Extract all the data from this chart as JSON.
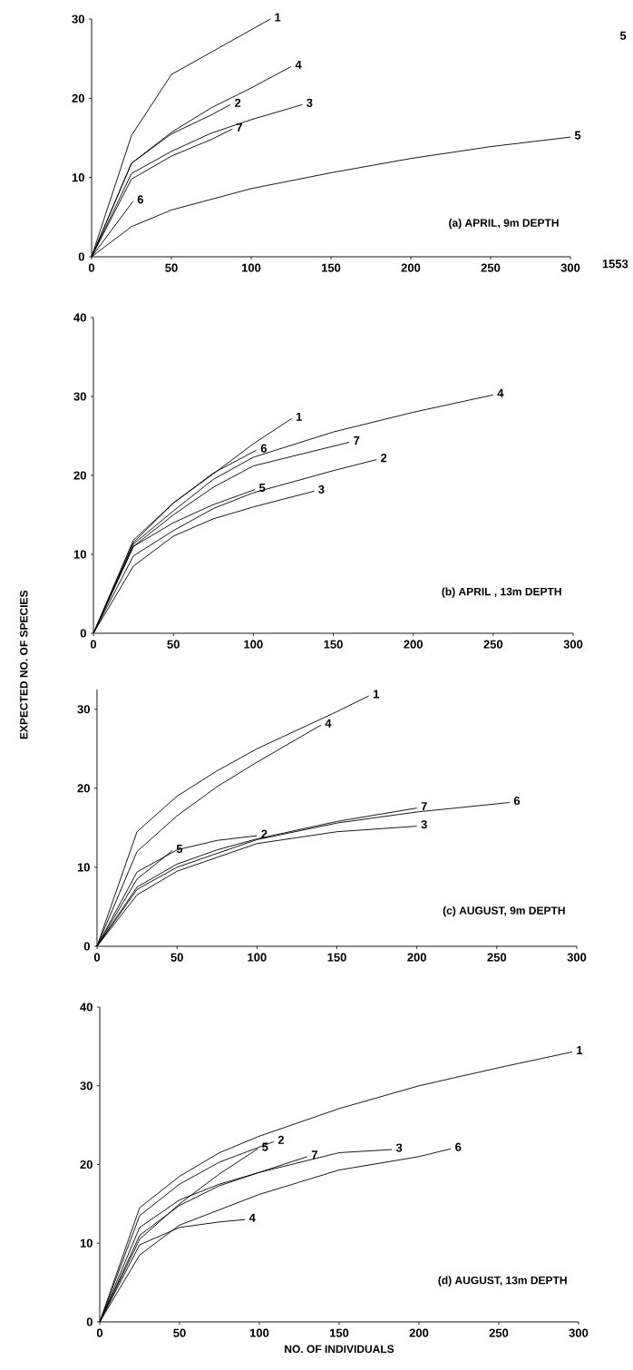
{
  "chart_data": [
    {
      "type": "line",
      "title": "(a)  APRIL, 9m DEPTH",
      "xlim": [
        0,
        300
      ],
      "ylim": [
        0,
        30
      ],
      "xticks": [
        0,
        50,
        100,
        150,
        200,
        250,
        300
      ],
      "yticks": [
        0,
        10,
        20,
        30
      ],
      "legend": false,
      "grid": false,
      "marker": "none",
      "line_style": "solid",
      "annotations": [
        "1553",
        "5"
      ],
      "series": [
        {
          "name": "1",
          "color": "#000000",
          "x": [
            0,
            25,
            50,
            112
          ],
          "values": [
            0,
            15.3,
            23,
            30
          ]
        },
        {
          "name": "2",
          "color": "#000000",
          "x": [
            0,
            25,
            50,
            75,
            87
          ],
          "values": [
            0,
            11.8,
            15.5,
            17.9,
            19.2
          ]
        },
        {
          "name": "3",
          "color": "#000000",
          "x": [
            0,
            25,
            50,
            75,
            100,
            132
          ],
          "values": [
            0,
            10.5,
            13.3,
            15.6,
            17.3,
            19.2
          ]
        },
        {
          "name": "4",
          "color": "#000000",
          "x": [
            0,
            25,
            50,
            75,
            100,
            125
          ],
          "values": [
            0,
            11.8,
            15.7,
            18.8,
            21.3,
            24
          ]
        },
        {
          "name": "5",
          "color": "#000000",
          "x": [
            0,
            25,
            50,
            100,
            150,
            200,
            250,
            300
          ],
          "values": [
            0,
            3.8,
            5.9,
            8.6,
            10.6,
            12.4,
            13.9,
            15.1
          ]
        },
        {
          "name": "6",
          "color": "#000000",
          "x": [
            0,
            26
          ],
          "values": [
            0,
            7
          ]
        },
        {
          "name": "7",
          "color": "#000000",
          "x": [
            0,
            25,
            50,
            75,
            88
          ],
          "values": [
            0,
            9.8,
            12.7,
            14.8,
            16.1
          ]
        }
      ]
    },
    {
      "type": "line",
      "title": "(b) APRIL , 13m DEPTH",
      "ylabel": "EXPECTED NO. OF SPECIES",
      "xlim": [
        0,
        300
      ],
      "ylim": [
        0,
        40
      ],
      "xticks": [
        0,
        50,
        100,
        150,
        200,
        250,
        300
      ],
      "yticks": [
        0,
        10,
        20,
        30,
        40
      ],
      "legend": false,
      "grid": false,
      "marker": "none",
      "line_style": "solid",
      "series": [
        {
          "name": "1",
          "color": "#000000",
          "x": [
            0,
            25,
            50,
            75,
            100,
            124
          ],
          "values": [
            0,
            11.8,
            16.5,
            20.2,
            24,
            27.2
          ]
        },
        {
          "name": "2",
          "color": "#000000",
          "x": [
            0,
            25,
            50,
            75,
            100,
            150,
            177
          ],
          "values": [
            0,
            9.8,
            13,
            15.8,
            17.8,
            20.6,
            22
          ]
        },
        {
          "name": "3",
          "color": "#000000",
          "x": [
            0,
            25,
            50,
            75,
            100,
            138
          ],
          "values": [
            0,
            8.5,
            12.3,
            14.5,
            16,
            18
          ]
        },
        {
          "name": "4",
          "color": "#000000",
          "x": [
            0,
            25,
            50,
            75,
            100,
            150,
            200,
            250
          ],
          "values": [
            0,
            11.3,
            15.5,
            19.5,
            22.3,
            25.5,
            28,
            30.2
          ]
        },
        {
          "name": "5",
          "color": "#000000",
          "x": [
            0,
            25,
            50,
            75,
            101
          ],
          "values": [
            0,
            11,
            14,
            16.3,
            18.2
          ]
        },
        {
          "name": "6",
          "color": "#000000",
          "x": [
            0,
            25,
            50,
            75,
            102
          ],
          "values": [
            0,
            11.5,
            16.5,
            20.3,
            23.2
          ]
        },
        {
          "name": "7",
          "color": "#000000",
          "x": [
            0,
            25,
            50,
            75,
            100,
            160
          ],
          "values": [
            0,
            11,
            15,
            18.5,
            21.2,
            24.2
          ]
        }
      ]
    },
    {
      "type": "line",
      "title": "(c) AUGUST, 9m DEPTH",
      "xlim": [
        0,
        300
      ],
      "ylim": [
        0,
        32.5
      ],
      "xticks": [
        0,
        50,
        100,
        150,
        200,
        250,
        300
      ],
      "yticks": [
        0,
        10,
        20,
        30
      ],
      "legend": false,
      "grid": false,
      "marker": "none",
      "line_style": "solid",
      "series": [
        {
          "name": "1",
          "color": "#000000",
          "x": [
            0,
            25,
            50,
            75,
            100,
            150,
            170
          ],
          "values": [
            0,
            14.5,
            19,
            22.2,
            25,
            29.7,
            31.7
          ]
        },
        {
          "name": "2",
          "color": "#000000",
          "x": [
            0,
            25,
            50,
            75,
            100
          ],
          "values": [
            0,
            9.4,
            12.2,
            13.4,
            14
          ]
        },
        {
          "name": "3",
          "color": "#000000",
          "x": [
            0,
            25,
            50,
            100,
            150,
            200
          ],
          "values": [
            0,
            6.5,
            9.5,
            13,
            14.5,
            15.2
          ]
        },
        {
          "name": "4",
          "color": "#000000",
          "x": [
            0,
            25,
            50,
            75,
            100,
            140
          ],
          "values": [
            0,
            12,
            16.5,
            20.2,
            23.3,
            28
          ]
        },
        {
          "name": "5",
          "color": "#000000",
          "x": [
            0,
            25,
            47
          ],
          "values": [
            0,
            8.5,
            12.1
          ]
        },
        {
          "name": "6",
          "color": "#000000",
          "x": [
            0,
            25,
            50,
            100,
            150,
            200,
            258
          ],
          "values": [
            0,
            7.2,
            10,
            13.5,
            15.6,
            17,
            18.2
          ]
        },
        {
          "name": "7",
          "color": "#000000",
          "x": [
            0,
            25,
            50,
            75,
            100,
            150,
            200
          ],
          "values": [
            0,
            7.5,
            10.4,
            12.2,
            13.6,
            15.8,
            17.5
          ]
        }
      ]
    },
    {
      "type": "line",
      "title": "(d) AUGUST, 13m DEPTH",
      "xlabel": "NO. OF INDIVIDUALS",
      "xlim": [
        0,
        300
      ],
      "ylim": [
        0,
        40
      ],
      "xticks": [
        0,
        50,
        100,
        150,
        200,
        250,
        300
      ],
      "yticks": [
        0,
        10,
        20,
        30,
        40
      ],
      "legend": false,
      "grid": false,
      "marker": "none",
      "line_style": "solid",
      "series": [
        {
          "name": "1",
          "color": "#000000",
          "x": [
            0,
            25,
            50,
            75,
            100,
            150,
            200,
            250,
            296
          ],
          "values": [
            0,
            14.5,
            18.5,
            21.5,
            23.6,
            27.1,
            30,
            32.3,
            34.3
          ]
        },
        {
          "name": "2",
          "color": "#000000",
          "x": [
            0,
            25,
            50,
            75,
            109
          ],
          "values": [
            0,
            13.5,
            17.5,
            20.3,
            22.9
          ]
        },
        {
          "name": "3",
          "color": "#000000",
          "x": [
            0,
            25,
            50,
            75,
            100,
            150,
            183
          ],
          "values": [
            0,
            11,
            14.8,
            17.3,
            19,
            21.5,
            21.9
          ]
        },
        {
          "name": "4",
          "color": "#000000",
          "x": [
            0,
            25,
            50,
            75,
            91
          ],
          "values": [
            0,
            9.8,
            12,
            12.7,
            13
          ]
        },
        {
          "name": "5",
          "color": "#000000",
          "x": [
            0,
            25,
            50,
            75,
            99
          ],
          "values": [
            0,
            10.5,
            15,
            18.8,
            22
          ]
        },
        {
          "name": "6",
          "color": "#000000",
          "x": [
            0,
            25,
            50,
            100,
            150,
            200,
            220
          ],
          "values": [
            0,
            8.5,
            12.3,
            16.2,
            19.3,
            21,
            22
          ]
        },
        {
          "name": "7",
          "color": "#000000",
          "x": [
            0,
            25,
            50,
            75,
            100,
            130
          ],
          "values": [
            0,
            12,
            15.5,
            17.5,
            19,
            21
          ]
        }
      ]
    }
  ]
}
